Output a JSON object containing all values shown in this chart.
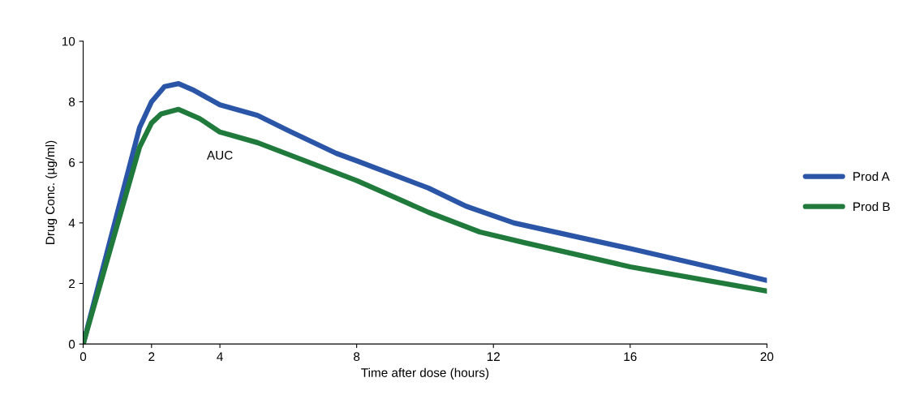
{
  "chart_data": {
    "type": "line",
    "xlabel": "Time after dose (hours)",
    "ylabel": "Drug Conc. (µg/ml)",
    "xlim": [
      0,
      20
    ],
    "xticks": [
      0,
      2,
      4,
      8,
      12,
      16,
      20
    ],
    "ylim": [
      0,
      10
    ],
    "yticks": [
      0,
      2,
      4,
      6,
      8,
      10
    ],
    "series": [
      {
        "name": "Prod A",
        "color": "#2b55a6",
        "x": [
          0,
          1.65,
          2,
          2.38,
          2.79,
          3.2,
          4,
          5.1,
          6.0,
          7.4,
          8,
          10.1,
          11.2,
          12.6,
          16,
          18.7,
          20
        ],
        "values": [
          0,
          7.15,
          8.0,
          8.5,
          8.6,
          8.4,
          7.9,
          7.55,
          7.05,
          6.3,
          6.05,
          5.15,
          4.55,
          4.0,
          3.15,
          2.45,
          2.1
        ]
      },
      {
        "name": "Prod B",
        "color": "#1f7a3c",
        "x": [
          0,
          1.65,
          2,
          2.28,
          2.79,
          3.4,
          4,
          5.1,
          8,
          10.1,
          11.6,
          12.9,
          16,
          20
        ],
        "values": [
          0,
          6.5,
          7.3,
          7.6,
          7.75,
          7.45,
          7.0,
          6.65,
          5.4,
          4.35,
          3.7,
          3.35,
          2.55,
          1.75
        ]
      }
    ],
    "annotations": [
      "AUC"
    ],
    "legend": "right",
    "grid": false,
    "marker": "none",
    "line_style": "solid"
  }
}
